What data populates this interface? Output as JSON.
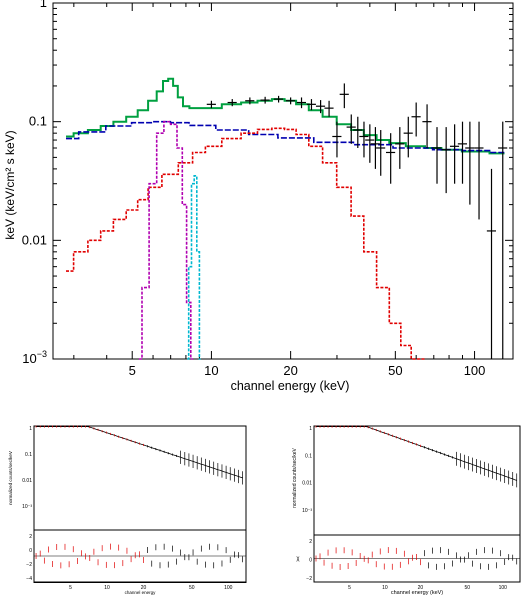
{
  "chart_data": [
    {
      "type": "line",
      "xscale": "log",
      "yscale": "log",
      "xlabel": "channel energy (keV)",
      "ylabel": "keV (keV/cm² s keV)",
      "xlim": [
        2.5,
        140
      ],
      "ylim": [
        0.001,
        1
      ],
      "x_tick_labels": [
        "5",
        "10",
        "20",
        "50",
        "100"
      ],
      "x_ticks": [
        5,
        10,
        20,
        50,
        100
      ],
      "y_tick_labels": [
        {
          "base": "1",
          "exp": "",
          "value": 1
        },
        {
          "base": "0.1",
          "exp": "",
          "value": 0.1
        },
        {
          "base": "0.01",
          "exp": "",
          "value": 0.01
        },
        {
          "base": "10",
          "exp": "−3",
          "value": 0.001
        }
      ],
      "colors": {
        "total": "#00a040",
        "powerlaw": "#0000b0",
        "compton": "#e00000",
        "line1": "#b000b0",
        "line2": "#00b8d0",
        "data": "#000000"
      },
      "series": [
        {
          "key": "total",
          "color": "#00a040",
          "x": [
            2.8,
            3.2,
            3.6,
            4.0,
            4.5,
            5.0,
            5.5,
            6.0,
            6.4,
            6.7,
            7.0,
            7.3,
            7.6,
            8.0,
            8.5,
            9.0,
            10,
            12,
            14,
            16,
            18,
            20,
            22,
            25,
            28,
            32,
            36,
            40,
            45,
            50,
            60,
            70,
            80,
            100,
            130
          ],
          "y": [
            0.075,
            0.08,
            0.085,
            0.092,
            0.1,
            0.11,
            0.125,
            0.15,
            0.18,
            0.22,
            0.23,
            0.2,
            0.16,
            0.135,
            0.13,
            0.13,
            0.13,
            0.14,
            0.145,
            0.15,
            0.155,
            0.15,
            0.14,
            0.125,
            0.11,
            0.095,
            0.085,
            0.077,
            0.07,
            0.066,
            0.062,
            0.06,
            0.058,
            0.056,
            0.054
          ]
        },
        {
          "key": "powerlaw",
          "color": "#0000b0",
          "dashed": true,
          "x": [
            2.8,
            3.5,
            4.5,
            5.5,
            6.5,
            7.5,
            9,
            12,
            16,
            20,
            30,
            40,
            60,
            80,
            100,
            130
          ],
          "y": [
            0.072,
            0.082,
            0.092,
            0.098,
            0.1,
            0.098,
            0.093,
            0.085,
            0.078,
            0.073,
            0.067,
            0.064,
            0.06,
            0.058,
            0.057,
            0.055
          ]
        },
        {
          "key": "compton",
          "color": "#e00000",
          "dashed": true,
          "x": [
            2.8,
            3.2,
            3.6,
            4.0,
            4.5,
            5.0,
            5.5,
            6.0,
            7.0,
            8.0,
            9.0,
            10,
            12,
            14,
            16,
            18,
            20,
            22,
            25,
            28,
            32,
            36,
            40,
            45,
            50,
            55,
            60,
            65
          ],
          "y": [
            0.0055,
            0.008,
            0.01,
            0.012,
            0.015,
            0.018,
            0.022,
            0.028,
            0.036,
            0.045,
            0.055,
            0.062,
            0.072,
            0.08,
            0.086,
            0.088,
            0.086,
            0.078,
            0.062,
            0.045,
            0.028,
            0.016,
            0.008,
            0.004,
            0.002,
            0.0013,
            0.001,
            0.0008
          ]
        },
        {
          "key": "line1",
          "color": "#b000b0",
          "dashed": true,
          "x": [
            5.3,
            5.6,
            6.0,
            6.4,
            6.8,
            7.2,
            7.6,
            7.9,
            8.2,
            8.5
          ],
          "y": [
            0.0005,
            0.004,
            0.03,
            0.08,
            0.1,
            0.095,
            0.06,
            0.02,
            0.003,
            0.0005
          ]
        },
        {
          "key": "line2",
          "color": "#00b8d0",
          "dashed": true,
          "x": [
            8.1,
            8.3,
            8.5,
            8.7,
            8.9,
            9.1
          ],
          "y": [
            0.0005,
            0.006,
            0.03,
            0.035,
            0.008,
            0.0005
          ]
        },
        {
          "key": "data",
          "color": "#000000",
          "errorbars": true,
          "x": [
            10,
            12,
            14,
            16,
            18,
            20,
            22,
            24,
            26,
            28,
            30,
            32,
            34,
            36,
            38,
            40,
            42,
            44,
            48,
            52,
            56,
            60,
            66,
            72,
            78,
            84,
            90,
            96,
            104,
            116,
            128
          ],
          "y": [
            0.14,
            0.145,
            0.15,
            0.152,
            0.155,
            0.15,
            0.145,
            0.14,
            0.135,
            0.13,
            0.075,
            0.17,
            0.09,
            0.085,
            0.075,
            0.07,
            0.065,
            0.06,
            0.055,
            0.065,
            0.08,
            0.11,
            0.1,
            0.06,
            0.058,
            0.062,
            0.065,
            0.06,
            0.06,
            0.012,
            0.06
          ],
          "ylo": [
            0.13,
            0.135,
            0.14,
            0.142,
            0.145,
            0.14,
            0.13,
            0.125,
            0.118,
            0.11,
            0.05,
            0.13,
            0.065,
            0.06,
            0.05,
            0.045,
            0.04,
            0.035,
            0.03,
            0.04,
            0.05,
            0.075,
            0.06,
            0.03,
            0.025,
            0.03,
            0.03,
            0.02,
            0.015,
            0.0005,
            0.0005
          ],
          "yhi": [
            0.15,
            0.155,
            0.16,
            0.162,
            0.165,
            0.16,
            0.16,
            0.155,
            0.152,
            0.15,
            0.1,
            0.21,
            0.115,
            0.11,
            0.1,
            0.095,
            0.09,
            0.085,
            0.08,
            0.09,
            0.11,
            0.145,
            0.14,
            0.09,
            0.09,
            0.095,
            0.1,
            0.1,
            0.1,
            0.04,
            0.1
          ]
        }
      ]
    },
    {
      "type": "line",
      "xscale": "log",
      "xlabel": "channel energy",
      "ylabel": "normalized counts/sec/keV",
      "x_tick_labels": [
        "5",
        "10",
        "20",
        "50",
        "100"
      ],
      "y_tick_labels": [
        "1",
        "0.1",
        "0.01",
        "10⁻³"
      ],
      "resid_tick_labels": [
        "2",
        "0",
        "−2",
        "−4"
      ]
    },
    {
      "type": "line",
      "xscale": "log",
      "xlabel": "channel energy (keV)",
      "ylabel": "normalized counts/sec/keV",
      "resid_label": "χ",
      "x_tick_labels": [
        "5",
        "10",
        "20",
        "50",
        "100"
      ],
      "y_tick_labels": [
        "1",
        "0.1",
        "0.01",
        "10⁻³"
      ],
      "resid_tick_labels": [
        "2",
        "0",
        "−2"
      ]
    }
  ]
}
